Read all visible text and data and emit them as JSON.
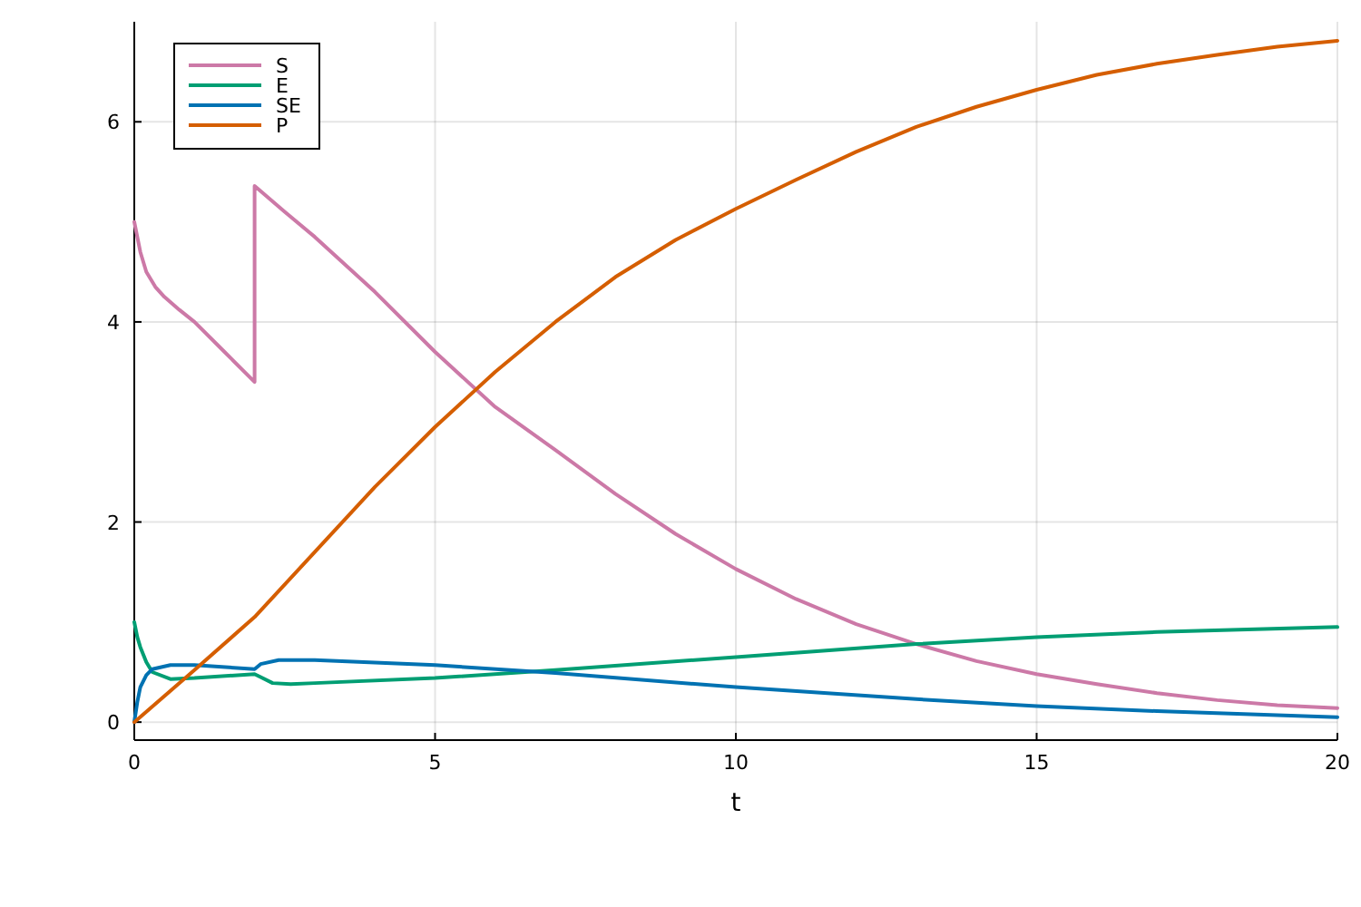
{
  "chart_data": {
    "type": "line",
    "xlabel": "t",
    "xlim": [
      0,
      20
    ],
    "xticks": [
      0,
      5,
      10,
      15,
      20
    ],
    "ylim": [
      -0.18,
      7
    ],
    "yticks": [
      0,
      2,
      4,
      6
    ],
    "grid": true,
    "legend": "top left",
    "line_style": "solid",
    "marker": "none",
    "series": [
      {
        "name": "S",
        "color": "#cc79a7",
        "x": [
          0,
          0.1,
          0.2,
          0.35,
          0.5,
          0.75,
          1,
          1.5,
          2,
          2,
          2.5,
          3,
          4,
          5,
          6,
          7,
          8,
          9,
          10,
          11,
          12,
          13,
          14,
          15,
          16,
          17,
          18,
          19,
          20
        ],
        "values": [
          5.0,
          4.7,
          4.5,
          4.35,
          4.25,
          4.12,
          4.0,
          3.7,
          3.4,
          5.36,
          5.1,
          4.85,
          4.3,
          3.7,
          3.15,
          2.72,
          2.28,
          1.88,
          1.53,
          1.23,
          0.98,
          0.78,
          0.61,
          0.48,
          0.38,
          0.29,
          0.22,
          0.17,
          0.14
        ]
      },
      {
        "name": "E",
        "color": "#009e73",
        "x": [
          0,
          0.05,
          0.1,
          0.2,
          0.3,
          0.6,
          1,
          2,
          2.1,
          2.3,
          2.6,
          3,
          5,
          7,
          10,
          13,
          15,
          17,
          20
        ],
        "values": [
          1.0,
          0.85,
          0.75,
          0.6,
          0.5,
          0.43,
          0.44,
          0.48,
          0.45,
          0.39,
          0.38,
          0.39,
          0.44,
          0.52,
          0.65,
          0.78,
          0.85,
          0.9,
          0.95
        ]
      },
      {
        "name": "SE",
        "color": "#0072b2",
        "x": [
          0,
          0.05,
          0.1,
          0.2,
          0.3,
          0.6,
          1,
          2,
          2.1,
          2.4,
          3,
          5,
          7,
          10,
          13,
          15,
          17,
          20
        ],
        "values": [
          0,
          0.2,
          0.35,
          0.47,
          0.53,
          0.57,
          0.57,
          0.53,
          0.58,
          0.62,
          0.62,
          0.57,
          0.49,
          0.35,
          0.23,
          0.16,
          0.11,
          0.05
        ]
      },
      {
        "name": "P",
        "color": "#d55e00",
        "x": [
          0,
          1,
          2,
          3,
          4,
          5,
          6,
          7,
          8,
          9,
          10,
          11,
          12,
          13,
          14,
          15,
          16,
          17,
          18,
          19,
          20
        ],
        "values": [
          0,
          0.52,
          1.05,
          1.7,
          2.35,
          2.95,
          3.5,
          4.0,
          4.45,
          4.82,
          5.13,
          5.42,
          5.7,
          5.95,
          6.15,
          6.32,
          6.47,
          6.58,
          6.67,
          6.75,
          6.81
        ]
      }
    ]
  }
}
